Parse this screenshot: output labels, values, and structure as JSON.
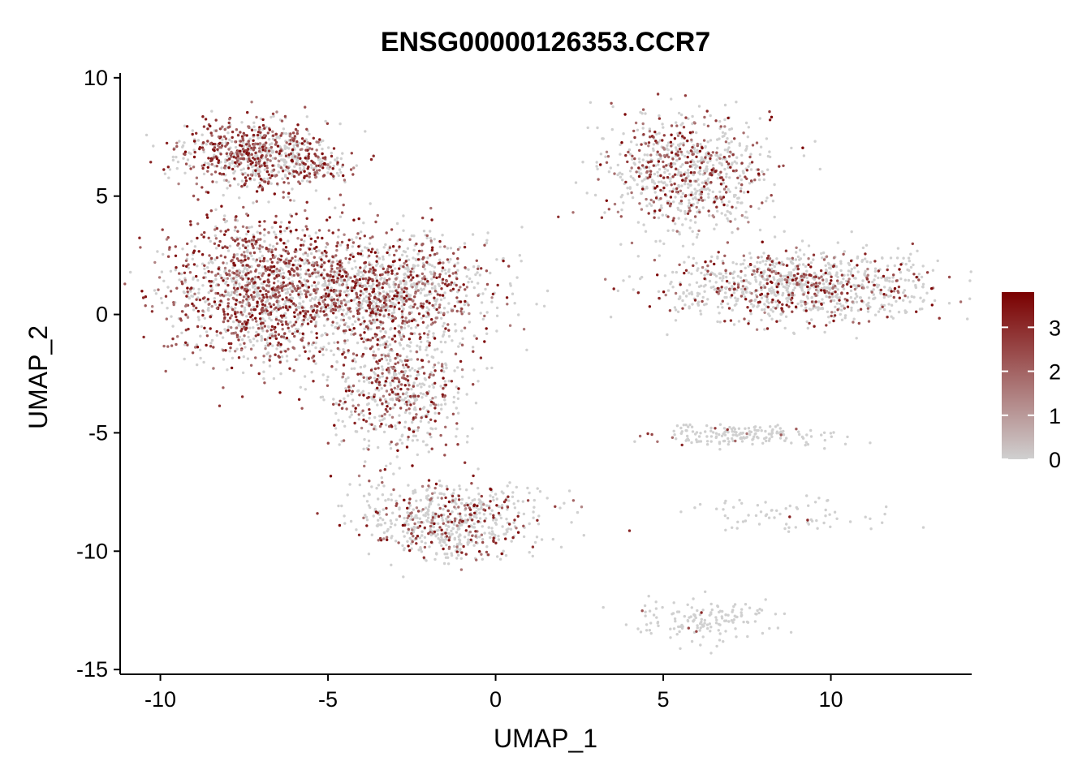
{
  "chart_data": {
    "type": "scatter",
    "title": "ENSG00000126353.CCR7",
    "xlabel": "UMAP_1",
    "ylabel": "UMAP_2",
    "xlim": [
      -11.2,
      14.2
    ],
    "ylim": [
      -15.2,
      10.2
    ],
    "xticks": [
      -10,
      -5,
      0,
      5,
      10
    ],
    "yticks": [
      -15,
      -10,
      -5,
      0,
      5,
      10
    ],
    "grid": false,
    "colorbar": {
      "position": "right",
      "min": 0,
      "max": 3.8,
      "ticks": [
        0,
        1,
        2,
        3
      ],
      "low_color": "#d0d0d0",
      "high_color": "#7a0000"
    },
    "clusters": [
      {
        "name": "top-left hook",
        "center": [
          -7.2,
          6.8
        ],
        "spread": [
          1.1,
          0.7
        ],
        "count": 700,
        "expr_prob": 0.55
      },
      {
        "name": "hook tail",
        "center": [
          -5.5,
          6.2
        ],
        "spread": [
          0.6,
          0.35
        ],
        "count": 120,
        "expr_prob": 0.5
      },
      {
        "name": "left body",
        "center": [
          -7.0,
          1.0
        ],
        "spread": [
          1.4,
          1.6
        ],
        "count": 1300,
        "expr_prob": 0.6
      },
      {
        "name": "center body",
        "center": [
          -3.5,
          1.0
        ],
        "spread": [
          1.7,
          1.2
        ],
        "count": 1300,
        "expr_prob": 0.45
      },
      {
        "name": "lower trunk",
        "center": [
          -3.0,
          -3.2
        ],
        "spread": [
          1.0,
          1.3
        ],
        "count": 600,
        "expr_prob": 0.4
      },
      {
        "name": "bottom lobe",
        "center": [
          -1.3,
          -8.7
        ],
        "spread": [
          1.4,
          0.8
        ],
        "count": 650,
        "expr_prob": 0.3
      },
      {
        "name": "right top",
        "center": [
          5.8,
          6.0
        ],
        "spread": [
          1.2,
          1.2
        ],
        "count": 800,
        "expr_prob": 0.35
      },
      {
        "name": "right tail",
        "center": [
          9.2,
          1.2
        ],
        "spread": [
          2.0,
          0.75
        ],
        "count": 1000,
        "expr_prob": 0.3
      },
      {
        "name": "right strip",
        "center": [
          7.3,
          -5.1
        ],
        "spread": [
          1.4,
          0.25
        ],
        "count": 170,
        "expr_prob": 0.05
      },
      {
        "name": "bottom arc",
        "center": [
          6.3,
          -13.0
        ],
        "spread": [
          1.0,
          0.45
        ],
        "count": 150,
        "expr_prob": 0.02
      },
      {
        "name": "diagonal streak",
        "center": [
          8.8,
          -8.5
        ],
        "spread": [
          1.5,
          0.4
        ],
        "count": 70,
        "expr_prob": 0.05
      }
    ]
  }
}
